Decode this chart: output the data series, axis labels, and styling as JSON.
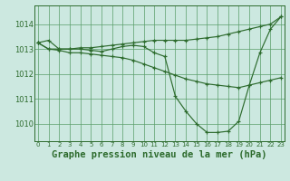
{
  "bg_color": "#cce8e0",
  "grid_color": "#5a9e6a",
  "line_color": "#2d6b2d",
  "title": "Graphe pression niveau de la mer (hPa)",
  "ylim": [
    1009.3,
    1014.75
  ],
  "xlim": [
    -0.3,
    23.3
  ],
  "yticks": [
    1010,
    1011,
    1012,
    1013,
    1014
  ],
  "xticks": [
    0,
    1,
    2,
    3,
    4,
    5,
    6,
    7,
    8,
    9,
    10,
    11,
    12,
    13,
    14,
    15,
    16,
    17,
    18,
    19,
    20,
    21,
    22,
    23
  ],
  "series": [
    [
      1013.25,
      1013.35,
      1013.0,
      1013.0,
      1013.05,
      1013.05,
      1013.1,
      1013.15,
      1013.2,
      1013.25,
      1013.3,
      1013.35,
      1013.35,
      1013.35,
      1013.35,
      1013.4,
      1013.45,
      1013.5,
      1013.6,
      1013.7,
      1013.8,
      1013.9,
      1014.0,
      1014.3
    ],
    [
      1013.25,
      1013.0,
      1012.95,
      1012.85,
      1012.85,
      1012.8,
      1012.75,
      1012.7,
      1012.65,
      1012.55,
      1012.4,
      1012.25,
      1012.1,
      1011.95,
      1011.8,
      1011.7,
      1011.6,
      1011.55,
      1011.5,
      1011.45,
      1011.55,
      1011.65,
      1011.75,
      1011.85
    ],
    [
      1013.25,
      1013.0,
      1013.0,
      1013.0,
      1013.0,
      1012.95,
      1012.9,
      1013.0,
      1013.1,
      1013.15,
      1013.1,
      1012.85,
      1012.7,
      1011.1,
      1010.5,
      1010.0,
      1009.65,
      1009.65,
      1009.7,
      1010.1,
      1011.55,
      1012.85,
      1013.8,
      1014.3
    ]
  ]
}
